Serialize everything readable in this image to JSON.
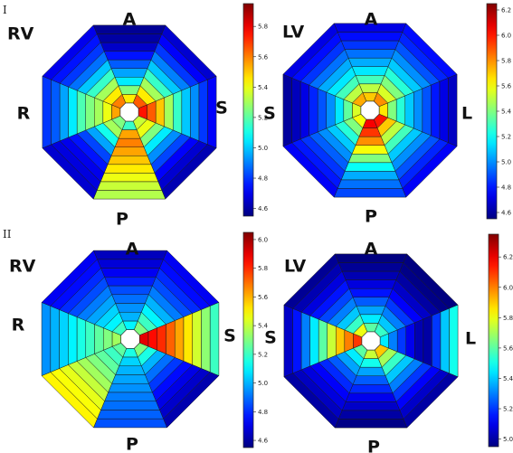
{
  "row_labels": [
    "I",
    "II"
  ],
  "chart_data": [
    {
      "type": "heatmap",
      "subtype": "octagonal-polar-map",
      "row": "I",
      "labels": {
        "top": "A",
        "bottom": "P",
        "left": "R",
        "right": "S",
        "corner": "RV"
      },
      "rings": 9,
      "sectors": 8,
      "sector_order": [
        "top",
        "top-right",
        "right",
        "bottom-right",
        "bottom",
        "bottom-left",
        "left",
        "top-left"
      ],
      "values": [
        [
          5.45,
          5.65,
          5.75,
          5.35,
          5.15,
          5.25,
          5.55,
          5.6
        ],
        [
          5.25,
          5.45,
          5.65,
          5.4,
          5.55,
          5.3,
          5.4,
          5.45
        ],
        [
          5.05,
          5.3,
          5.5,
          5.25,
          5.6,
          5.1,
          5.3,
          5.3
        ],
        [
          4.95,
          5.15,
          5.3,
          5.05,
          5.55,
          4.95,
          5.25,
          5.15
        ],
        [
          4.85,
          5.0,
          5.15,
          4.92,
          5.5,
          4.82,
          5.18,
          5.0
        ],
        [
          4.75,
          4.9,
          5.0,
          4.82,
          5.45,
          4.75,
          5.05,
          4.88
        ],
        [
          4.65,
          4.8,
          4.92,
          4.72,
          5.4,
          4.7,
          4.95,
          4.8
        ],
        [
          4.6,
          4.72,
          4.8,
          4.66,
          5.35,
          4.68,
          4.85,
          4.75
        ],
        [
          4.58,
          4.66,
          4.72,
          4.62,
          5.32,
          4.66,
          4.8,
          4.7
        ]
      ],
      "colorbar": {
        "min": 4.55,
        "max": 5.95,
        "ticks": [
          4.6,
          4.8,
          5.0,
          5.2,
          5.4,
          5.6,
          5.8
        ],
        "tick_labels": [
          "4.6",
          "4.8",
          "5.0",
          "5.2",
          "5.4",
          "5.6",
          "5.8"
        ]
      }
    },
    {
      "type": "heatmap",
      "subtype": "octagonal-polar-map",
      "row": "I",
      "labels": {
        "top": "A",
        "bottom": "P",
        "left": "S",
        "right": "L",
        "corner": "LV"
      },
      "rings": 9,
      "sectors": 8,
      "sector_order": [
        "top",
        "top-right",
        "right",
        "bottom-right",
        "bottom",
        "bottom-left",
        "left",
        "top-left"
      ],
      "values": [
        [
          5.7,
          5.8,
          5.65,
          6.0,
          6.05,
          5.6,
          5.55,
          5.75
        ],
        [
          5.5,
          5.55,
          5.4,
          5.7,
          5.95,
          5.4,
          5.35,
          5.5
        ],
        [
          5.3,
          5.4,
          5.25,
          5.5,
          5.8,
          5.25,
          5.15,
          5.3
        ],
        [
          5.15,
          5.25,
          5.1,
          5.3,
          5.6,
          5.1,
          5.0,
          5.15
        ],
        [
          5.05,
          5.1,
          5.0,
          5.1,
          5.4,
          5.0,
          4.9,
          5.05
        ],
        [
          4.95,
          5.0,
          4.9,
          5.0,
          5.2,
          4.92,
          4.82,
          4.95
        ],
        [
          4.85,
          4.9,
          4.8,
          4.9,
          5.05,
          4.85,
          4.72,
          4.85
        ],
        [
          4.78,
          4.82,
          4.72,
          4.82,
          4.95,
          4.8,
          4.65,
          4.78
        ],
        [
          4.72,
          4.78,
          4.66,
          4.75,
          4.88,
          4.75,
          4.6,
          4.72
        ]
      ],
      "colorbar": {
        "min": 4.55,
        "max": 6.25,
        "ticks": [
          4.6,
          4.8,
          5.0,
          5.2,
          5.4,
          5.6,
          5.8,
          6.0,
          6.2
        ],
        "tick_labels": [
          "4.6",
          "4.8",
          "5.0",
          "5.2",
          "5.4",
          "5.6",
          "5.8",
          "6.0",
          "6.2"
        ]
      }
    },
    {
      "type": "heatmap",
      "subtype": "octagonal-polar-map",
      "row": "II",
      "labels": {
        "top": "A",
        "bottom": "P",
        "left": "R",
        "right": "S",
        "corner": "RV"
      },
      "rings": 9,
      "sectors": 8,
      "sector_order": [
        "top",
        "top-right",
        "right",
        "bottom-right",
        "bottom",
        "bottom-left",
        "left",
        "top-left"
      ],
      "values": [
        [
          5.1,
          5.3,
          5.9,
          5.3,
          5.15,
          5.25,
          5.35,
          5.2
        ],
        [
          5.0,
          5.2,
          5.85,
          5.15,
          5.05,
          5.2,
          5.3,
          5.1
        ],
        [
          4.95,
          5.1,
          5.8,
          5.0,
          5.0,
          5.25,
          5.25,
          5.05
        ],
        [
          4.9,
          5.0,
          5.72,
          4.9,
          4.98,
          5.3,
          5.2,
          4.98
        ],
        [
          4.85,
          4.92,
          5.62,
          4.82,
          4.95,
          5.35,
          5.15,
          4.92
        ],
        [
          4.78,
          4.85,
          5.52,
          4.75,
          4.92,
          5.4,
          5.1,
          4.85
        ],
        [
          4.72,
          4.8,
          5.42,
          4.7,
          4.9,
          5.45,
          5.05,
          4.8
        ],
        [
          4.68,
          4.75,
          5.32,
          4.66,
          4.88,
          5.48,
          5.0,
          4.75
        ],
        [
          4.64,
          4.72,
          5.2,
          4.62,
          4.86,
          5.5,
          4.95,
          4.72
        ]
      ],
      "colorbar": {
        "min": 4.55,
        "max": 6.05,
        "ticks": [
          4.6,
          4.8,
          5.0,
          5.2,
          5.4,
          5.6,
          5.8,
          6.0
        ],
        "tick_labels": [
          "4.6",
          "4.8",
          "5.0",
          "5.2",
          "5.4",
          "5.6",
          "5.8",
          "6.0"
        ]
      }
    },
    {
      "type": "heatmap",
      "subtype": "octagonal-polar-map",
      "row": "II",
      "labels": {
        "top": "A",
        "bottom": "P",
        "left": "S",
        "right": "L",
        "corner": "LV"
      },
      "rings": 9,
      "sectors": 8,
      "sector_order": [
        "top",
        "top-right",
        "right",
        "bottom-right",
        "bottom",
        "bottom-left",
        "left",
        "top-left"
      ],
      "values": [
        [
          5.6,
          5.55,
          5.45,
          5.9,
          5.75,
          5.6,
          6.1,
          5.8
        ],
        [
          5.45,
          5.4,
          5.3,
          5.7,
          5.5,
          5.45,
          6.0,
          5.55
        ],
        [
          5.35,
          5.3,
          5.2,
          5.55,
          5.35,
          5.35,
          5.9,
          5.4
        ],
        [
          5.25,
          5.2,
          5.1,
          5.4,
          5.25,
          5.25,
          5.75,
          5.3
        ],
        [
          5.15,
          5.12,
          5.02,
          5.3,
          5.18,
          5.18,
          5.6,
          5.22
        ],
        [
          5.08,
          5.05,
          5.0,
          5.2,
          5.1,
          5.12,
          5.45,
          5.15
        ],
        [
          5.02,
          5.0,
          5.2,
          5.12,
          5.05,
          5.08,
          5.3,
          5.08
        ],
        [
          4.98,
          4.96,
          5.4,
          5.05,
          5.0,
          5.04,
          5.15,
          5.02
        ],
        [
          4.95,
          4.94,
          5.5,
          5.0,
          4.96,
          5.0,
          5.05,
          4.98
        ]
      ],
      "colorbar": {
        "min": 4.95,
        "max": 6.35,
        "ticks": [
          5.0,
          5.2,
          5.4,
          5.6,
          5.8,
          6.0,
          6.2
        ],
        "tick_labels": [
          "5.0",
          "5.2",
          "5.4",
          "5.6",
          "5.8",
          "6.0",
          "6.2"
        ]
      }
    }
  ]
}
